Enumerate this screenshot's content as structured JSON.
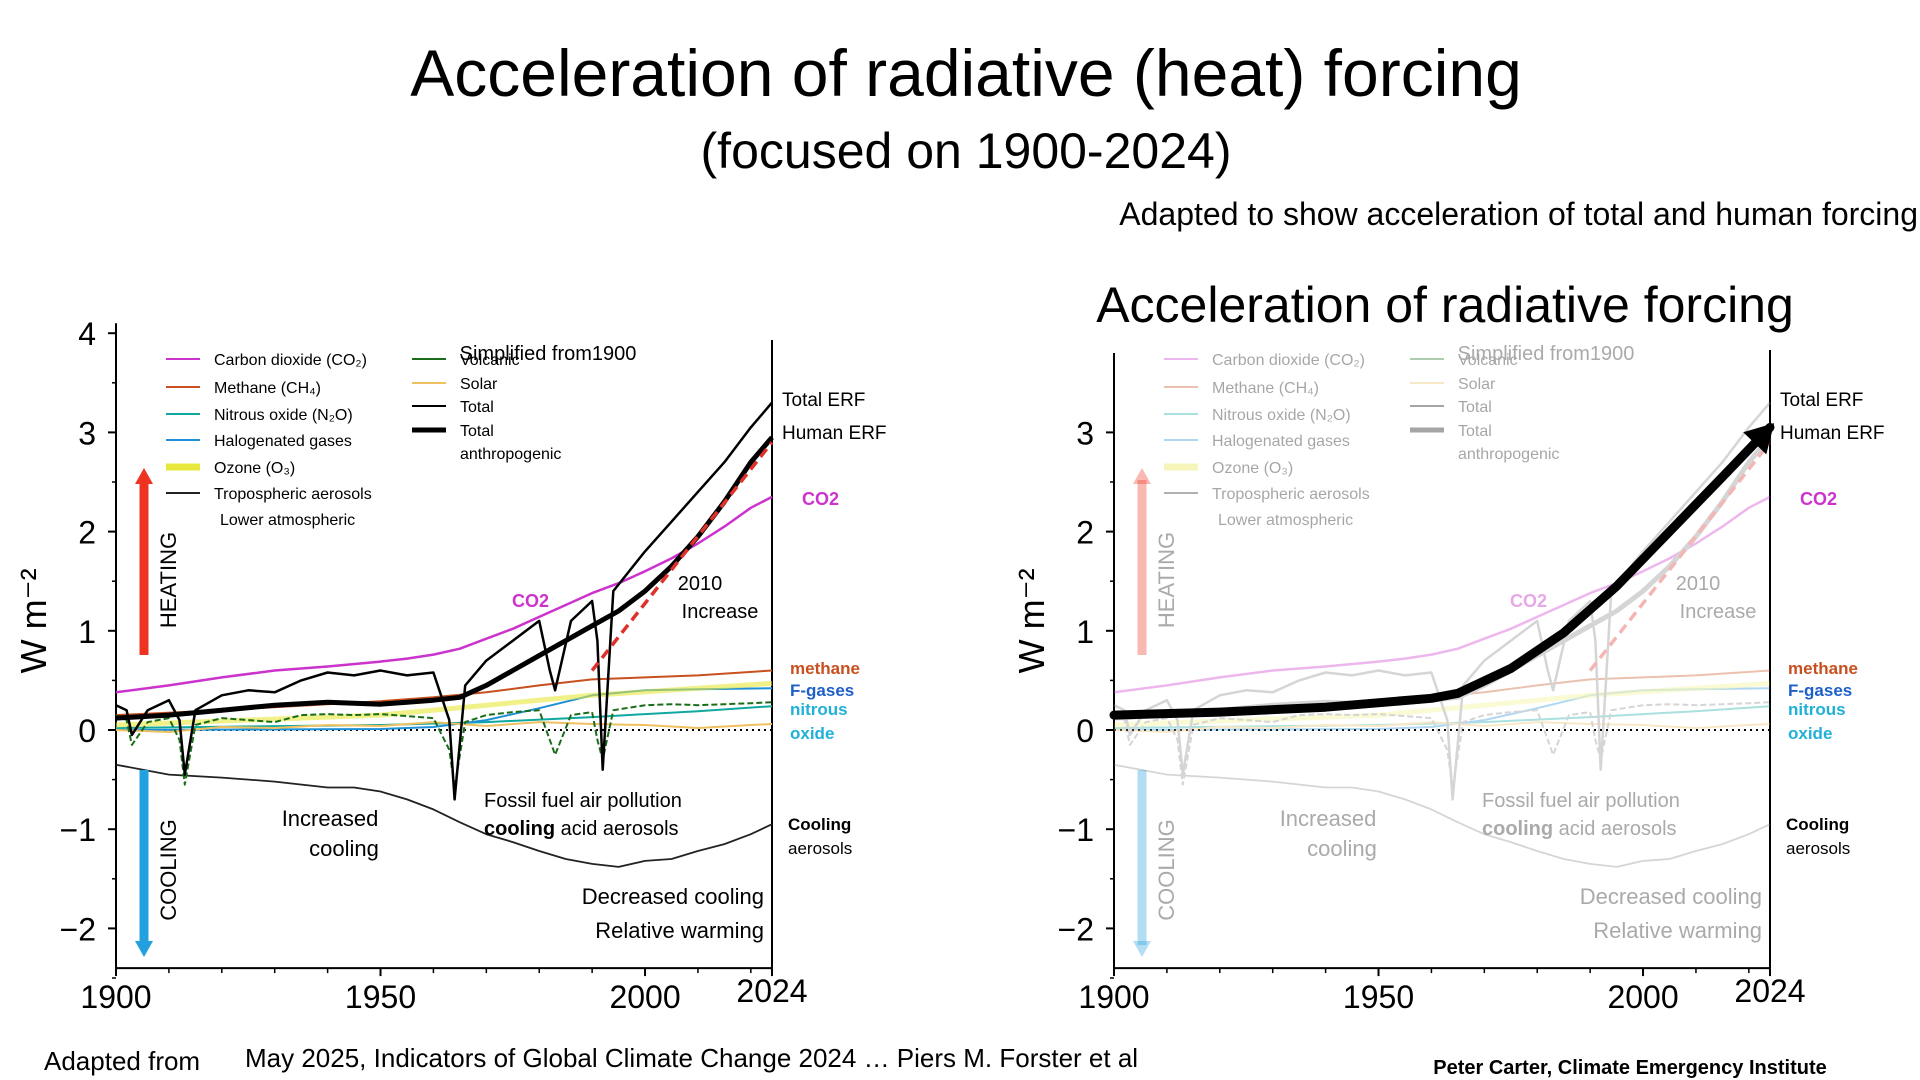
{
  "slide": {
    "title": "Acceleration of radiative (heat) forcing",
    "subtitle": "(focused on 1900-2024)",
    "note": "Adapted to show acceleration of total and human  forcing",
    "right_panel_title": "Acceleration of radiative forcing",
    "source_prefix": "Adapted from",
    "source_text": "May 2025, Indicators of  Global Climate Change 2024 … Piers M. Forster et al",
    "credit": "Peter Carter, Climate Emergency Institute"
  },
  "colors": {
    "co2": "#cc33cc",
    "methane": "#c8501e",
    "n2o": "#10a8a0",
    "halogenated": "#1e90d8",
    "ozone": "#e8e83c",
    "aerosols": "#222222",
    "volcanic": "#1a6e1a",
    "solar": "#f0c060",
    "total": "#000000",
    "trend": "#e0302a",
    "heating_arrow": "#ee3322",
    "cooling_arrow": "#22a0e0",
    "fgases_label": "#1e60c8",
    "nitrous_label": "#20b0d8"
  },
  "chart_data": [
    {
      "type": "line",
      "ylabel": "W m⁻²",
      "xlim": [
        1900,
        2024
      ],
      "ylim": [
        -2.4,
        4.1
      ],
      "x_ticks": [
        "1900",
        "1950",
        "2000",
        "2024"
      ],
      "y_ticks": [
        "4",
        "3",
        "2",
        "1",
        "0",
        "−1",
        "−2"
      ],
      "y_tick_values": [
        4,
        3,
        2,
        1,
        0,
        -1,
        -2
      ],
      "x_tick_values": [
        1900,
        1950,
        2000,
        2024
      ],
      "legend_col1": [
        "Carbon dioxide (CO₂)",
        "Methane (CH₄)",
        "Nitrous oxide (N₂O)",
        "Halogenated gases",
        "Ozone (O₃)",
        "Tropospheric aerosols",
        "Lower atmospheric"
      ],
      "legend_col2": [
        "Volcanic",
        "Solar",
        "Total",
        "Total",
        "anthropogenic"
      ],
      "annotations": {
        "simplified": "Simplified  from1900",
        "total_erf": "Total ERF",
        "human_erf": "Human ERF",
        "co2_right": "CO2",
        "co2_mid": "CO2",
        "increase_year": "2010",
        "increase": "Increase",
        "heating": "HEATING",
        "cooling": "COOLING",
        "methane": "methane",
        "fgases": "F-gases",
        "nitrous": "nitrous",
        "oxide": "oxide",
        "fossil1": "Fossil fuel air pollution",
        "fossil2_bold": "cooling",
        "fossil2_rest": " acid aerosols",
        "increased": "Increased",
        "cooling_word": "cooling",
        "cooling_right1": "Cooling",
        "cooling_right2": "aerosols",
        "decreased": "Decreased cooling",
        "relative": "Relative warming"
      },
      "series": [
        {
          "key": "co2",
          "x": [
            1900,
            1910,
            1920,
            1930,
            1940,
            1950,
            1955,
            1960,
            1965,
            1970,
            1975,
            1980,
            1985,
            1990,
            1995,
            2000,
            2005,
            2010,
            2015,
            2020,
            2024
          ],
          "y": [
            0.38,
            0.45,
            0.53,
            0.6,
            0.64,
            0.69,
            0.72,
            0.76,
            0.82,
            0.92,
            1.02,
            1.14,
            1.26,
            1.38,
            1.48,
            1.6,
            1.73,
            1.88,
            2.05,
            2.24,
            2.35
          ]
        },
        {
          "key": "methane",
          "x": [
            1900,
            1920,
            1940,
            1950,
            1960,
            1970,
            1980,
            1990,
            2000,
            2010,
            2024
          ],
          "y": [
            0.15,
            0.2,
            0.26,
            0.29,
            0.33,
            0.38,
            0.45,
            0.51,
            0.53,
            0.55,
            0.6
          ]
        },
        {
          "key": "n2o",
          "x": [
            1900,
            1950,
            1970,
            1990,
            2000,
            2010,
            2024
          ],
          "y": [
            0.02,
            0.05,
            0.08,
            0.13,
            0.16,
            0.19,
            0.24
          ]
        },
        {
          "key": "halogenated",
          "x": [
            1900,
            1950,
            1960,
            1970,
            1980,
            1990,
            2000,
            2010,
            2024
          ],
          "y": [
            0.0,
            0.01,
            0.03,
            0.1,
            0.22,
            0.35,
            0.4,
            0.41,
            0.42
          ]
        },
        {
          "key": "ozone",
          "x": [
            1900,
            1950,
            1970,
            1990,
            2010,
            2024
          ],
          "y": [
            0.05,
            0.15,
            0.25,
            0.35,
            0.42,
            0.47
          ]
        },
        {
          "key": "solar",
          "x": [
            1900,
            1910,
            1920,
            1930,
            1940,
            1950,
            1960,
            1970,
            1980,
            1990,
            2000,
            2010,
            2020,
            2024
          ],
          "y": [
            0.0,
            -0.02,
            0.03,
            0.02,
            0.05,
            0.04,
            0.08,
            0.04,
            0.08,
            0.06,
            0.05,
            0.02,
            0.05,
            0.06
          ]
        },
        {
          "key": "aerosols",
          "x": [
            1900,
            1910,
            1920,
            1930,
            1940,
            1945,
            1950,
            1955,
            1960,
            1965,
            1970,
            1975,
            1980,
            1985,
            1990,
            1995,
            2000,
            2005,
            2010,
            2015,
            2020,
            2024
          ],
          "y": [
            -0.35,
            -0.45,
            -0.48,
            -0.52,
            -0.58,
            -0.58,
            -0.62,
            -0.7,
            -0.8,
            -0.93,
            -1.05,
            -1.13,
            -1.22,
            -1.3,
            -1.35,
            -1.38,
            -1.32,
            -1.3,
            -1.22,
            -1.15,
            -1.05,
            -0.95
          ]
        },
        {
          "key": "volcanic",
          "x": [
            1900,
            1902,
            1903,
            1906,
            1910,
            1912,
            1913,
            1915,
            1920,
            1925,
            1930,
            1935,
            1940,
            1945,
            1950,
            1955,
            1960,
            1963,
            1964,
            1966,
            1970,
            1975,
            1980,
            1982,
            1983,
            1986,
            1990,
            1991,
            1992,
            1994,
            2000,
            2005,
            2010,
            2015,
            2020,
            2024
          ],
          "y": [
            0.15,
            0.1,
            -0.15,
            0.08,
            0.12,
            -0.1,
            -0.55,
            0.05,
            0.12,
            0.1,
            0.08,
            0.15,
            0.16,
            0.15,
            0.16,
            0.14,
            0.12,
            -0.2,
            -0.58,
            0.08,
            0.15,
            0.18,
            0.2,
            -0.1,
            -0.25,
            0.15,
            0.18,
            -0.1,
            -0.3,
            0.2,
            0.25,
            0.26,
            0.25,
            0.26,
            0.27,
            0.28
          ]
        },
        {
          "key": "total",
          "x": [
            1900,
            1902,
            1903,
            1906,
            1910,
            1912,
            1913,
            1915,
            1920,
            1925,
            1930,
            1935,
            1940,
            1945,
            1950,
            1955,
            1960,
            1963,
            1964,
            1966,
            1970,
            1975,
            1980,
            1982,
            1983,
            1986,
            1990,
            1991,
            1992,
            1994,
            2000,
            2005,
            2010,
            2015,
            2020,
            2024
          ],
          "y": [
            0.25,
            0.2,
            -0.05,
            0.2,
            0.3,
            0.1,
            -0.45,
            0.2,
            0.35,
            0.4,
            0.38,
            0.5,
            0.58,
            0.55,
            0.6,
            0.55,
            0.58,
            0.1,
            -0.7,
            0.45,
            0.7,
            0.9,
            1.1,
            0.6,
            0.4,
            1.1,
            1.3,
            0.9,
            -0.4,
            1.4,
            1.8,
            2.1,
            2.4,
            2.7,
            3.05,
            3.3
          ]
        },
        {
          "key": "human",
          "x": [
            1900,
            1910,
            1920,
            1930,
            1940,
            1950,
            1955,
            1960,
            1965,
            1970,
            1975,
            1980,
            1985,
            1990,
            1995,
            2000,
            2005,
            2010,
            2015,
            2020,
            2024
          ],
          "y": [
            0.12,
            0.15,
            0.2,
            0.25,
            0.28,
            0.26,
            0.28,
            0.3,
            0.33,
            0.45,
            0.6,
            0.75,
            0.9,
            1.05,
            1.2,
            1.4,
            1.65,
            1.95,
            2.3,
            2.7,
            2.95
          ]
        },
        {
          "key": "trend",
          "x": [
            1990,
            2024
          ],
          "y": [
            0.6,
            2.9
          ]
        }
      ]
    },
    {
      "type": "line",
      "ylabel": "W m⁻²",
      "xlim": [
        1900,
        2024
      ],
      "ylim": [
        -2.4,
        3.8
      ],
      "x_ticks": [
        "1900",
        "1950",
        "2000",
        "2024"
      ],
      "y_ticks": [
        "3",
        "2",
        "1",
        "0",
        "−1",
        "−2"
      ],
      "y_tick_values": [
        3,
        2,
        1,
        0,
        -1,
        -2
      ],
      "x_tick_values": [
        1900,
        1950,
        2000,
        2024
      ],
      "highlight_series": {
        "name": "acceleration curve",
        "x": [
          1900,
          1920,
          1940,
          1960,
          1965,
          1975,
          1985,
          1995,
          2005,
          2015,
          2024
        ],
        "y": [
          0.15,
          0.18,
          0.23,
          0.32,
          0.37,
          0.62,
          0.98,
          1.45,
          2.0,
          2.55,
          3.05
        ]
      }
    }
  ]
}
